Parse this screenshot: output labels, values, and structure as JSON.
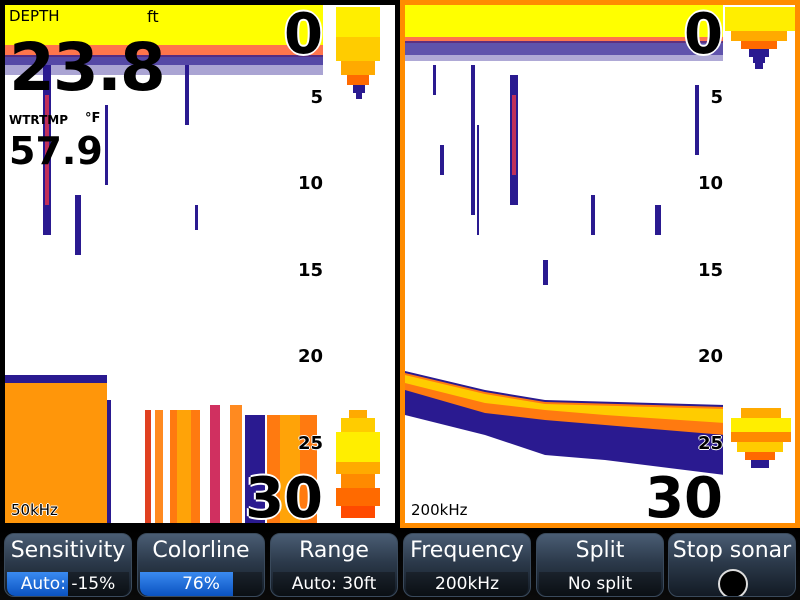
{
  "left_panel": {
    "frequency": "50kHz",
    "depth_scale": [
      "0",
      "5",
      "10",
      "15",
      "20",
      "25",
      "30"
    ],
    "depth_overlay": {
      "title": "DEPTH",
      "unit": "ft",
      "value": "23.8"
    },
    "water_temp_overlay": {
      "title": "WTRTMP",
      "unit": "°F",
      "value": "57.9"
    }
  },
  "right_panel": {
    "frequency": "200kHz",
    "depth_scale": [
      "0",
      "5",
      "10",
      "15",
      "20",
      "25",
      "30"
    ],
    "active_border_color": "#ff8c00"
  },
  "bottom_bar": {
    "buttons": [
      {
        "label": "Sensitivity",
        "value": "Auto: -15%",
        "level": 0.5
      },
      {
        "label": "Colorline",
        "value": "76%",
        "level": 0.76
      },
      {
        "label": "Range",
        "value": "Auto: 30ft"
      },
      {
        "label": "Frequency",
        "value": "200kHz"
      },
      {
        "label": "Split",
        "value": "No split"
      },
      {
        "label": "Stop sonar",
        "icon": "stop-circle-icon"
      }
    ]
  },
  "colors": {
    "surface_clutter": "#ffff00",
    "bottom_echo_hot": "#ff6a00",
    "weak_echo": "#1a1aa0"
  }
}
